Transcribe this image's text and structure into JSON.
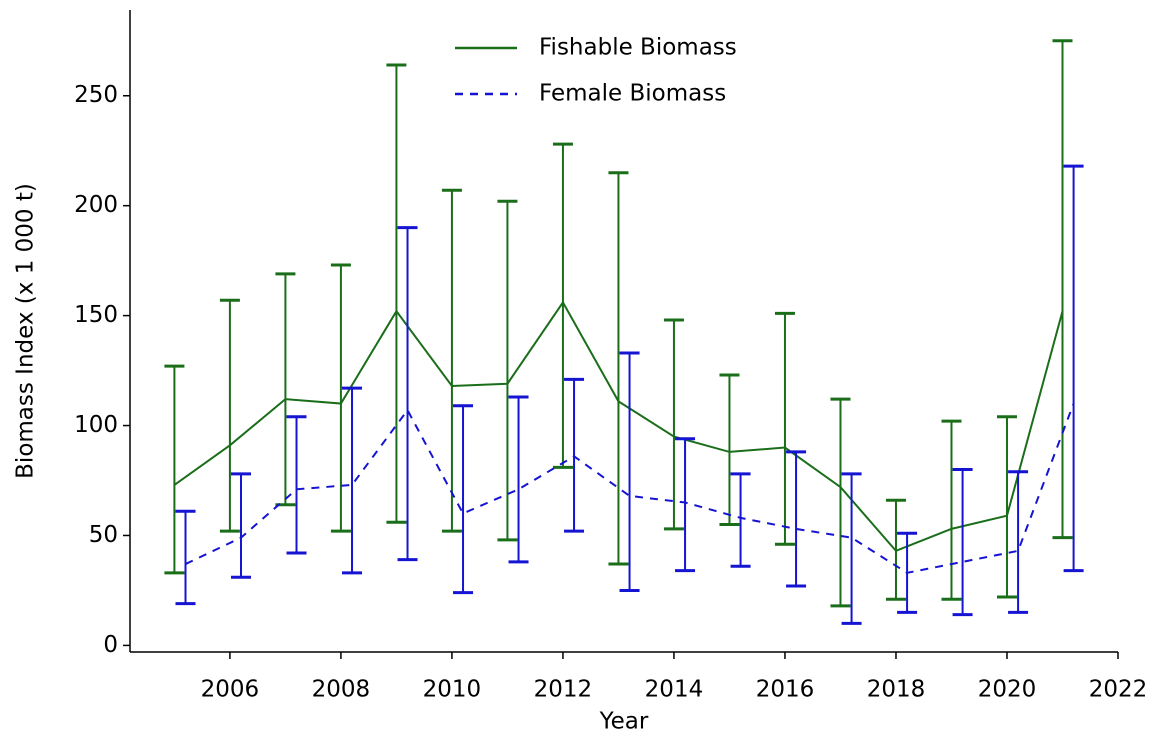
{
  "chart_data": {
    "type": "line_errorbar",
    "xlabel": "Year",
    "ylabel": "Biomass Index (x 1 000 t)",
    "xlim": [
      2004.2,
      2022
    ],
    "xticks": [
      2006,
      2008,
      2010,
      2012,
      2014,
      2016,
      2018,
      2020,
      2022
    ],
    "ylim": [
      -3,
      289
    ],
    "yticks": [
      0,
      50,
      100,
      150,
      200,
      250
    ],
    "legend": "upper center",
    "series": [
      {
        "name": "Fishable Biomass",
        "color": "#1a6e1a",
        "linestyle": "solid",
        "x": [
          2005,
          2006,
          2007,
          2008,
          2009,
          2010,
          2011,
          2012,
          2013,
          2014,
          2015,
          2016,
          2017,
          2018,
          2019,
          2020,
          2021
        ],
        "values": [
          73,
          91,
          112,
          110,
          152,
          118,
          119,
          156,
          111,
          95,
          88,
          90,
          72,
          43,
          53,
          59,
          152
        ],
        "lower": [
          33,
          52,
          64,
          52,
          56,
          52,
          48,
          81,
          37,
          53,
          55,
          46,
          18,
          21,
          21,
          22,
          49
        ],
        "upper": [
          127,
          157,
          169,
          173,
          264,
          207,
          202,
          228,
          215,
          148,
          123,
          151,
          112,
          66,
          102,
          104,
          275
        ]
      },
      {
        "name": "Female Biomass",
        "color": "#1414d2",
        "linestyle": "dashed",
        "x": [
          2005.2,
          2006.2,
          2007.2,
          2008.2,
          2009.2,
          2010.2,
          2011.2,
          2012.2,
          2013.2,
          2014.2,
          2015.2,
          2016.2,
          2017.2,
          2018.2,
          2019.2,
          2020.2,
          2021.2
        ],
        "values": [
          37,
          49,
          71,
          73,
          107,
          60,
          71,
          86,
          68,
          65,
          58,
          53,
          49,
          33,
          38,
          43,
          110
        ],
        "lower": [
          19,
          31,
          42,
          33,
          39,
          24,
          38,
          52,
          25,
          34,
          36,
          27,
          10,
          15,
          14,
          15,
          34
        ],
        "upper": [
          61,
          78,
          104,
          117,
          190,
          109,
          113,
          121,
          133,
          94,
          78,
          88,
          78,
          51,
          80,
          79,
          218
        ]
      }
    ]
  }
}
